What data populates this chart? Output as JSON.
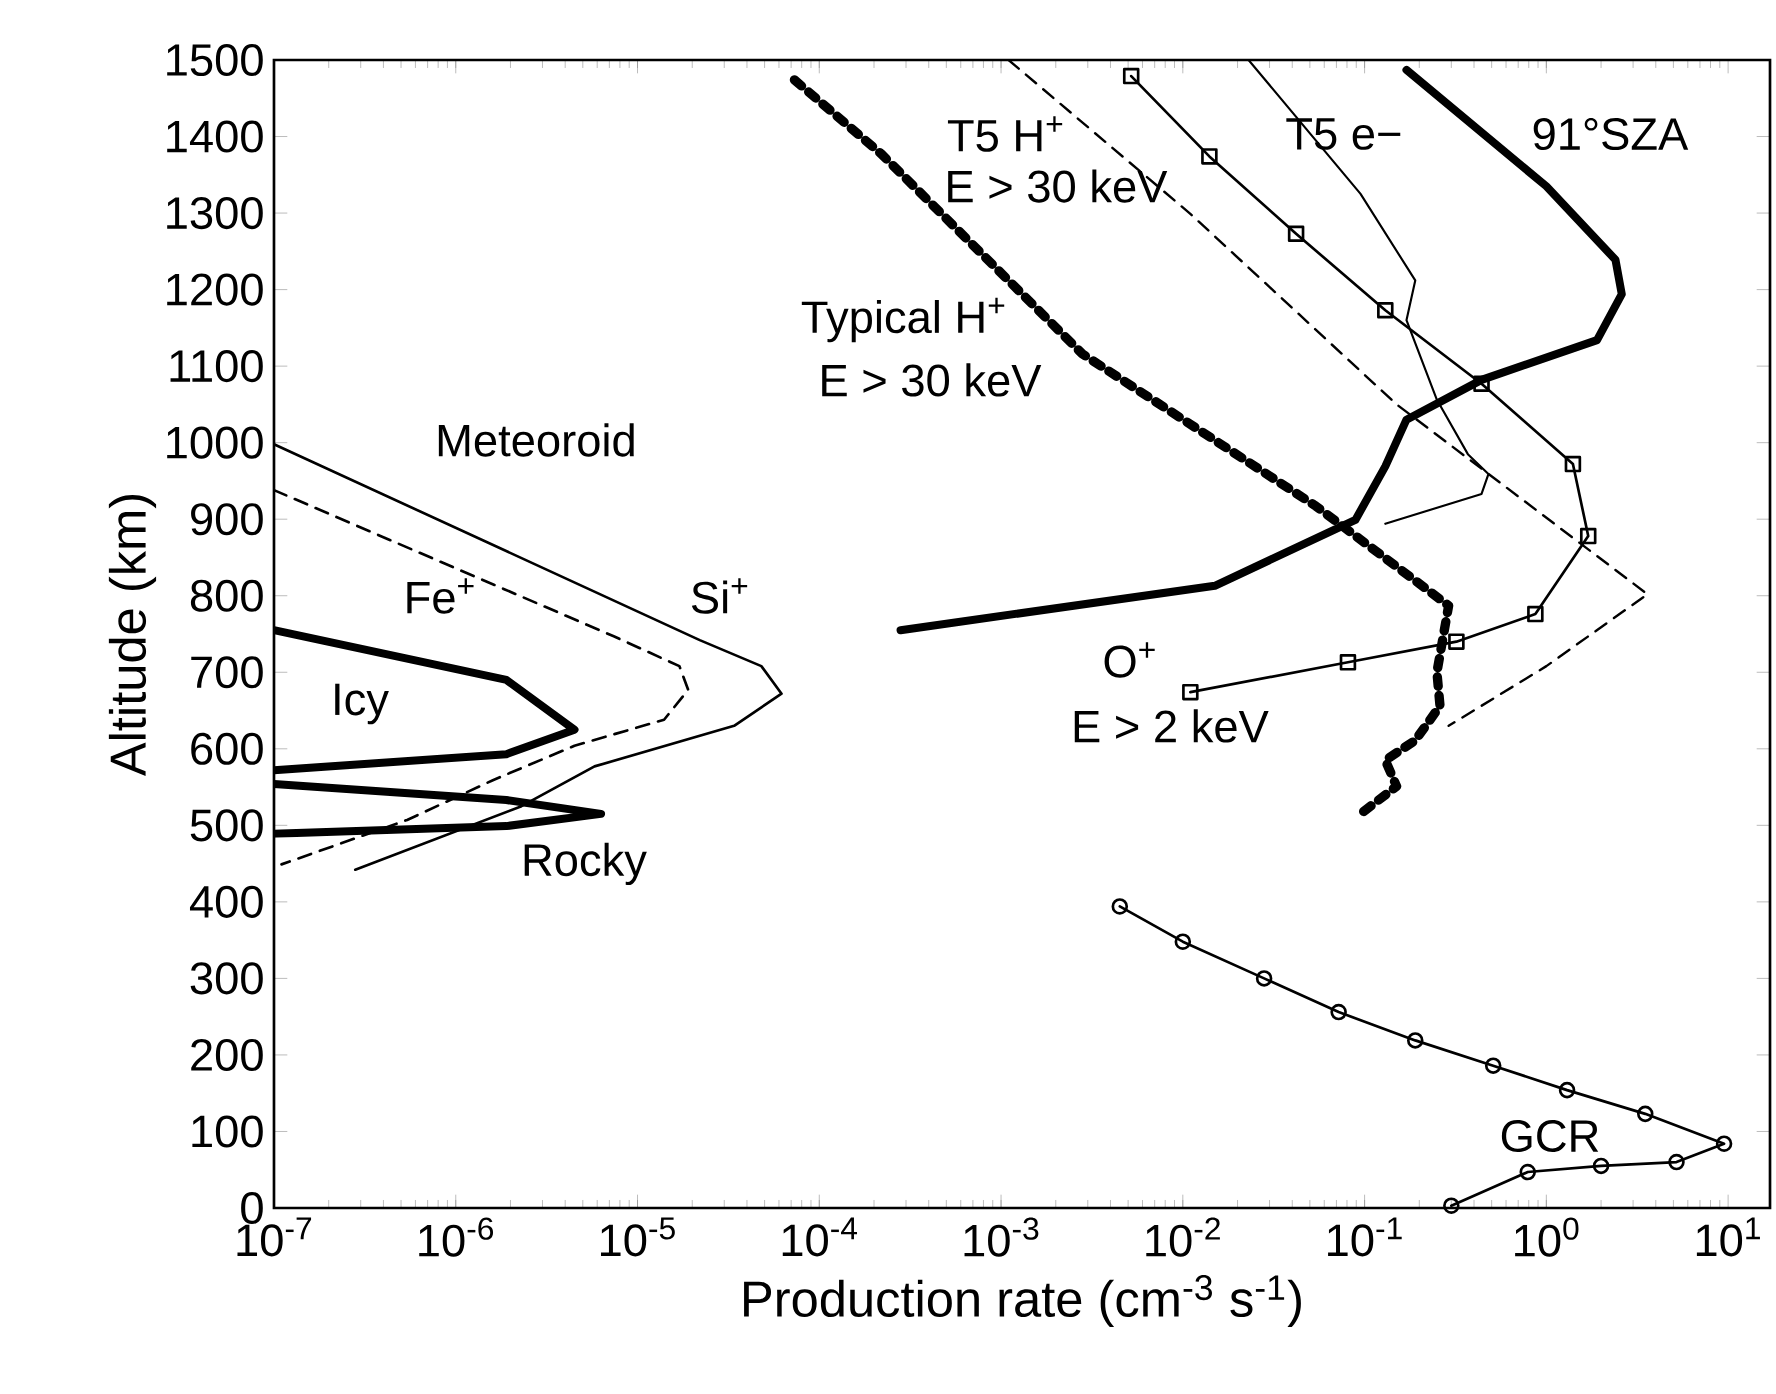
{
  "chart_data": {
    "type": "line",
    "xlabel": "Production rate (cm$^{-3}$ s$^{-1}$)",
    "ylabel": "Altitude (km)",
    "log": "x",
    "grid": false,
    "xlim": [
      1e-07,
      17
    ],
    "ylim": [
      0,
      1500
    ],
    "xticks": [
      {
        "value": 1e-07,
        "label": "10$^{-7}$"
      },
      {
        "value": 1e-06,
        "label": "10$^{-6}$"
      },
      {
        "value": 1e-05,
        "label": "10$^{-5}$"
      },
      {
        "value": 0.0001,
        "label": "10$^{-4}$"
      },
      {
        "value": 0.001,
        "label": "10$^{-3}$"
      },
      {
        "value": 0.01,
        "label": "10$^{-2}$"
      },
      {
        "value": 0.1,
        "label": "10$^{-1}$"
      },
      {
        "value": 1,
        "label": "10$^{0}$"
      },
      {
        "value": 10,
        "label": "10$^{1}$"
      }
    ],
    "yticks": [
      0,
      100,
      200,
      300,
      400,
      500,
      600,
      700,
      800,
      900,
      1000,
      1100,
      1200,
      1300,
      1400,
      1500
    ],
    "series": [
      {
        "color": "#000000",
        "line_style": "solid",
        "marker": "none",
        "x": [
          1e-07,
          2.2e-05,
          4.8e-05,
          6.2e-05,
          3.4e-05,
          5.8e-06,
          2.3e-06,
          2.8e-07
        ],
        "values": [
          998,
          742,
          708,
          672,
          630,
          577,
          525,
          442
        ]
      },
      {
        "color": "#000000",
        "line_style": "dashed",
        "marker": "none",
        "x": [
          1e-07,
          7.4e-06,
          1.7e-05,
          1.9e-05,
          1.4e-05,
          4.5e-06,
          1.6e-06,
          5.4e-07,
          1.1e-07
        ],
        "values": [
          938,
          747,
          708,
          677,
          638,
          604,
          559,
          507,
          449
        ]
      },
      {
        "color": "#000000",
        "line_style": "solid",
        "marker": "none",
        "x": [
          1e-07,
          1.9e-06,
          4.5e-06,
          1.9e-06,
          1e-07
        ],
        "values": [
          755,
          690,
          625,
          593,
          572
        ]
      },
      {
        "color": "#000000",
        "line_style": "solid",
        "marker": "none",
        "x": [
          1e-07,
          1.9e-06,
          6.3e-06,
          1.9e-06,
          1e-07
        ],
        "values": [
          554,
          533,
          515,
          499,
          489
        ]
      },
      {
        "color": "#000000",
        "line_style": "dotted",
        "marker": "none",
        "x": [
          7.3e-05,
          0.00022,
          0.0028,
          0.054,
          0.29,
          0.25,
          0.26,
          0.19,
          0.13,
          0.15,
          0.095
        ],
        "values": [
          1474,
          1377,
          1116,
          917,
          787,
          700,
          656,
          611,
          585,
          551,
          515
        ]
      },
      {
        "color": "#000000",
        "line_style": "dashed",
        "marker": "none",
        "x": [
          0.0011,
          0.011,
          0.15,
          3.6,
          1.0,
          0.29
        ],
        "values": [
          1500,
          1299,
          1050,
          802,
          708,
          630
        ]
      },
      {
        "color": "#000000",
        "line_style": "solid",
        "marker": "none",
        "x": [
          0.023,
          0.095,
          0.19,
          0.17,
          0.25,
          0.37,
          0.48,
          0.44,
          0.13
        ],
        "values": [
          1500,
          1325,
          1212,
          1160,
          1056,
          985,
          959,
          933,
          894
        ]
      },
      {
        "color": "#000000",
        "line_style": "solid",
        "marker": "none",
        "x": [
          0.17,
          1.0,
          2.4,
          2.6,
          1.9,
          0.44,
          0.17,
          0.13,
          0.089,
          0.015,
          0.00028
        ],
        "values": [
          1487,
          1335,
          1239,
          1194,
          1134,
          1082,
          1030,
          969,
          899,
          813,
          755
        ]
      },
      {
        "color": "#000000",
        "line_style": "solid",
        "marker": "square",
        "x": [
          0.0052,
          0.014,
          0.042,
          0.13,
          0.44,
          1.4,
          1.7,
          0.87,
          0.32,
          0.081,
          0.011
        ],
        "values": [
          1479,
          1374,
          1273,
          1173,
          1077,
          972,
          878,
          776,
          740,
          713,
          674
        ]
      },
      {
        "color": "#000000",
        "line_style": "solid",
        "marker": "circle",
        "x": [
          0.0045,
          0.01,
          0.028,
          0.072,
          0.19,
          0.51,
          1.3,
          3.5,
          9.5,
          5.2,
          2.0,
          0.79,
          0.3
        ],
        "values": [
          394,
          348,
          300,
          256,
          219,
          186,
          154,
          123,
          84,
          60,
          55,
          47,
          3
        ]
      }
    ],
    "annotations": [
      "Meteoroid",
      "Fe$^{+}$",
      "Si$^{+}$",
      "Icy",
      "Rocky",
      "T5 H$^{+}$",
      "E > 30 keV",
      "Typical H$^{+}$",
      "E > 30 keV",
      "T5 e−",
      "91°SZA",
      "O$^{+}$",
      "E > 2 keV",
      "GCR"
    ]
  }
}
